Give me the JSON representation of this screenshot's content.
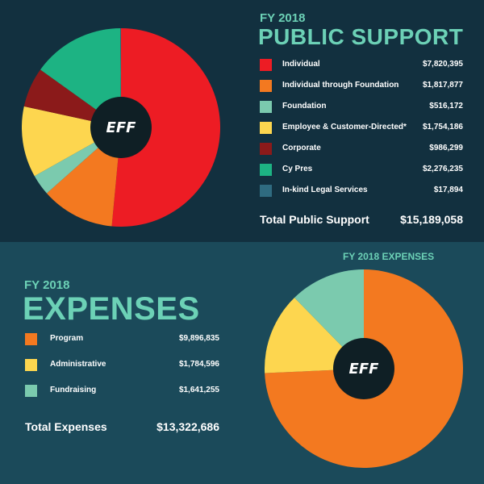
{
  "support": {
    "fy": "FY 2018",
    "heading": "PUBLIC SUPPORT",
    "total_label": "Total Public Support",
    "total_value": "$15,189,058"
  },
  "expenses": {
    "fy": "FY 2018",
    "heading": "EXPENSES",
    "chart_title": "FY 2018 EXPENSES",
    "total_label": "Total Expenses",
    "total_value": "$13,322,686"
  },
  "logo": {
    "text": "EFF"
  },
  "colors": {
    "top_bg": "#12303f",
    "bottom_bg": "#1b4a5a",
    "accent": "#6cd1b6",
    "hole": "#0f1f25"
  },
  "chart_data": [
    {
      "type": "pie",
      "title": "PUBLIC SUPPORT",
      "categories": [
        "Individual",
        "Individual through Foundation",
        "Foundation",
        "Employee & Customer-Directed*",
        "Corporate",
        "Cy Pres",
        "In-kind Legal Services"
      ],
      "values": [
        7820395,
        1817877,
        516172,
        1754186,
        986299,
        2276235,
        17894
      ],
      "value_labels": [
        "$7,820,395",
        "$1,817,877",
        "$516,172",
        "$1,754,186",
        "$986,299",
        "$2,276,235",
        "$17,894"
      ],
      "colors": [
        "#ed1c24",
        "#f37920",
        "#7bcaae",
        "#fdd64f",
        "#8b1a1a",
        "#1db383",
        "#2f6b80"
      ]
    },
    {
      "type": "pie",
      "title": "FY 2018 EXPENSES",
      "categories": [
        "Program",
        "Administrative",
        "Fundraising"
      ],
      "values": [
        9896835,
        1784596,
        1641255
      ],
      "value_labels": [
        "$9,896,835",
        "$1,784,596",
        "$1,641,255"
      ],
      "colors": [
        "#f37920",
        "#fdd64f",
        "#7bcaae"
      ]
    }
  ]
}
